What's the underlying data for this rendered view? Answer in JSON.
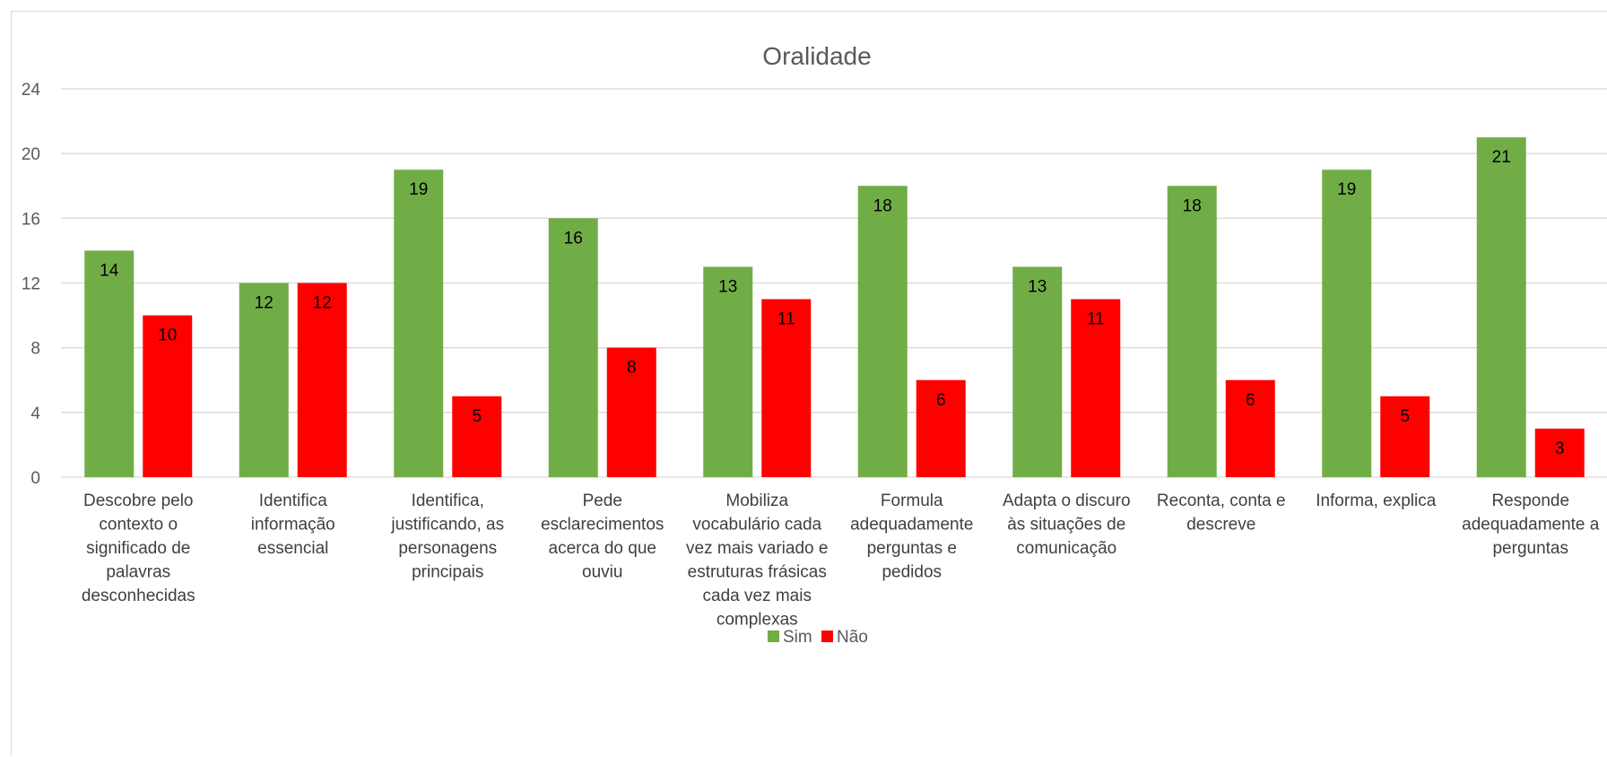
{
  "chart_data": {
    "type": "bar",
    "title": "Oralidade",
    "xlabel": "",
    "ylabel": "",
    "ylim": [
      0,
      24
    ],
    "yticks": [
      0,
      4,
      8,
      12,
      16,
      20,
      24
    ],
    "grid": true,
    "legend_position": "bottom",
    "categories": [
      "Descobre pelo contexto o significado de palavras desconhecidas",
      "Identifica informação essencial",
      "Identifica, justificando, as personagens principais",
      "Pede esclarecimentos acerca do que ouviu",
      "Mobiliza vocabulário cada vez mais variado e estruturas frásicas cada vez mais complexas",
      "Formula adequadamente perguntas e pedidos",
      "Adapta o discuro às situações de comunicação",
      "Reconta, conta e descreve",
      "Informa, explica",
      "Responde adequadamente a perguntas"
    ],
    "category_lines": [
      [
        "Descobre pelo",
        "contexto o",
        "significado de",
        "palavras",
        "desconhecidas"
      ],
      [
        "Identifica",
        "informação",
        "essencial"
      ],
      [
        "Identifica,",
        "justificando, as",
        "personagens",
        "principais"
      ],
      [
        "Pede",
        "esclarecimentos",
        "acerca do que",
        "ouviu"
      ],
      [
        "Mobiliza",
        "vocabulário cada",
        "vez mais variado e",
        "estruturas frásicas",
        "cada vez mais",
        "complexas"
      ],
      [
        "Formula",
        "adequadamente",
        "perguntas e",
        "pedidos"
      ],
      [
        "Adapta o discuro",
        "às situações de",
        "comunicação"
      ],
      [
        "Reconta, conta e",
        "descreve"
      ],
      [
        "Informa, explica"
      ],
      [
        "Responde",
        "adequadamente a",
        "perguntas"
      ]
    ],
    "series": [
      {
        "name": "Sim",
        "color": "#70ad47",
        "values": [
          14,
          12,
          19,
          16,
          13,
          18,
          13,
          18,
          19,
          21
        ]
      },
      {
        "name": "Não",
        "color": "#ff0000",
        "values": [
          10,
          12,
          5,
          8,
          11,
          6,
          11,
          6,
          5,
          3
        ]
      }
    ]
  }
}
